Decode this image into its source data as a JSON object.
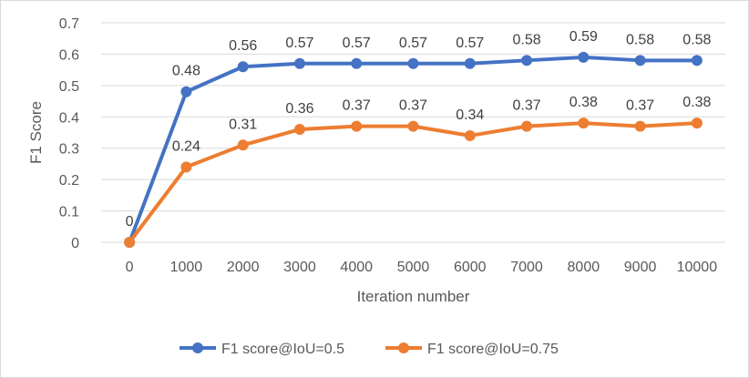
{
  "chart_data": {
    "type": "line",
    "x": [
      0,
      1000,
      2000,
      3000,
      4000,
      5000,
      6000,
      7000,
      8000,
      9000,
      10000
    ],
    "categories": [
      "0",
      "1000",
      "2000",
      "3000",
      "4000",
      "5000",
      "6000",
      "7000",
      "8000",
      "9000",
      "10000"
    ],
    "series": [
      {
        "name": "F1 score@IoU=0.5",
        "color": "#4472C4",
        "values": [
          0,
          0.48,
          0.56,
          0.57,
          0.57,
          0.57,
          0.57,
          0.58,
          0.59,
          0.58,
          0.58
        ],
        "labels": [
          "0",
          "0.48",
          "0.56",
          "0.57",
          "0.57",
          "0.57",
          "0.57",
          "0.58",
          "0.59",
          "0.58",
          "0.58"
        ]
      },
      {
        "name": "F1 score@IoU=0.75",
        "color": "#ED7D31",
        "values": [
          0,
          0.24,
          0.31,
          0.36,
          0.37,
          0.37,
          0.34,
          0.37,
          0.38,
          0.37,
          0.38
        ],
        "labels": [
          "",
          "0.24",
          "0.31",
          "0.36",
          "0.37",
          "0.37",
          "0.34",
          "0.37",
          "0.38",
          "0.37",
          "0.38"
        ]
      }
    ],
    "xlabel": "Iteration number",
    "ylabel": "F1 Score",
    "ylim": [
      0,
      0.7
    ],
    "yticks": [
      "0",
      "0.1",
      "0.2",
      "0.3",
      "0.4",
      "0.5",
      "0.6",
      "0.7"
    ],
    "grid": true,
    "legend": "bottom"
  }
}
